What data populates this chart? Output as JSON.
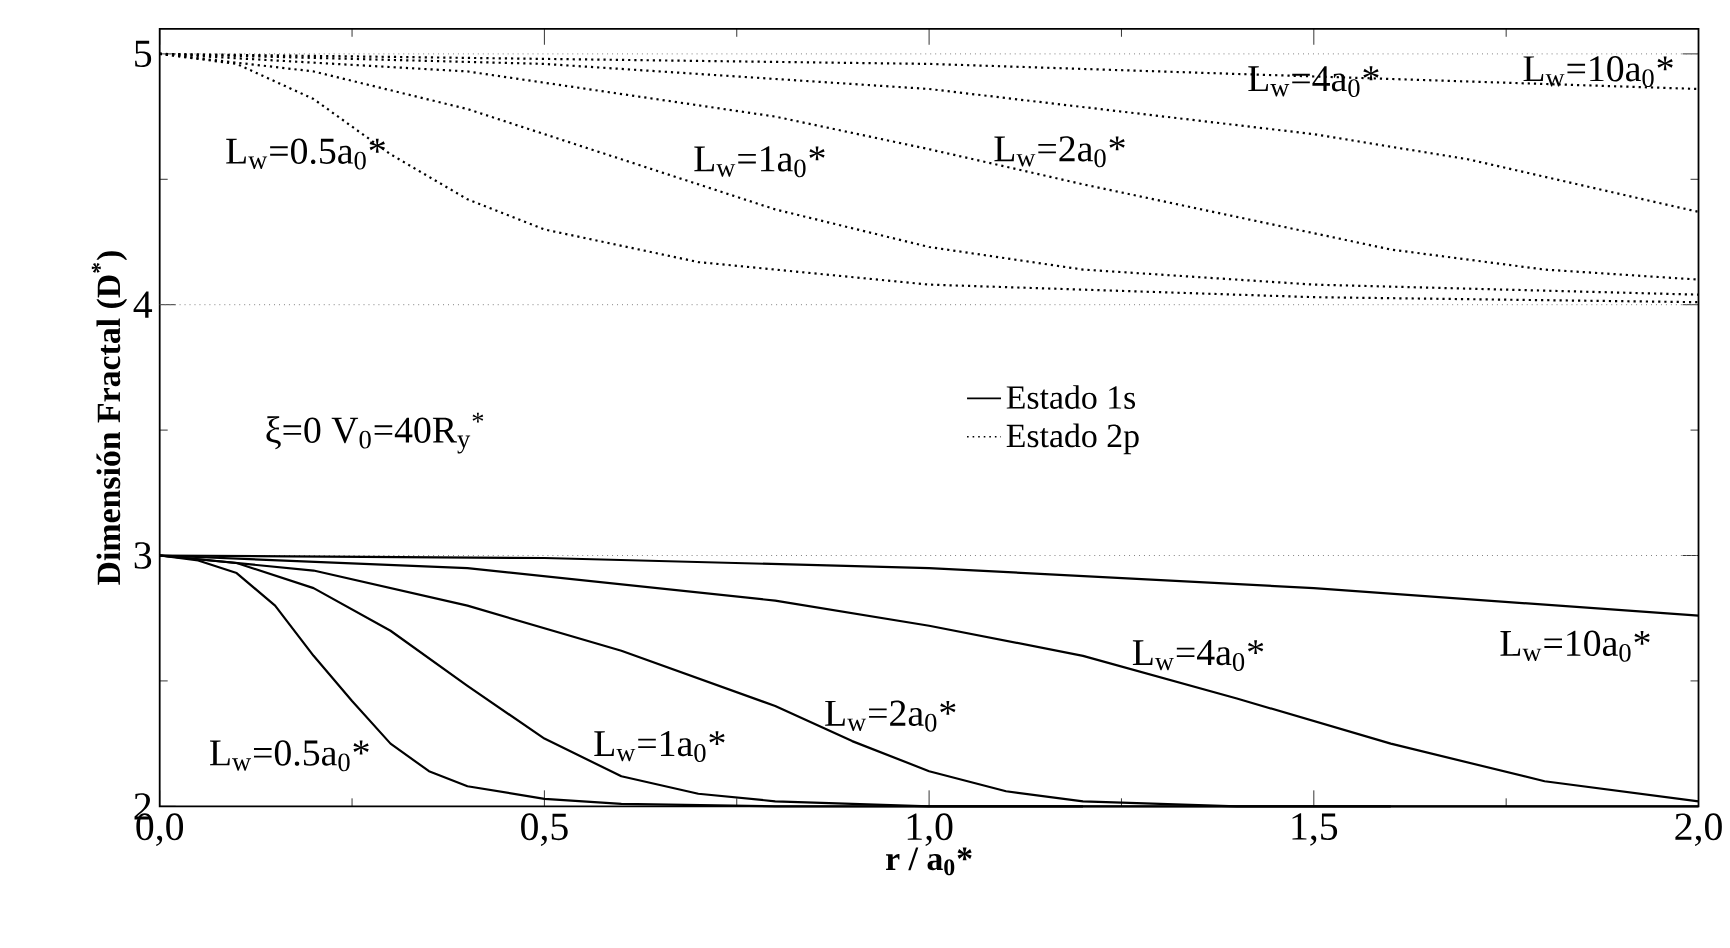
{
  "chart_data": {
    "type": "line",
    "xlabel": "r / a$_{0}$*",
    "ylabel": "Dimensión Fractal (D$^{*}$)",
    "xlim": [
      0,
      2
    ],
    "ylim": [
      2,
      5.1
    ],
    "xticks": [
      {
        "value": 0,
        "label": "0,0"
      },
      {
        "value": 0.5,
        "label": "0,5"
      },
      {
        "value": 1,
        "label": "1,0"
      },
      {
        "value": 1.5,
        "label": "1,5"
      },
      {
        "value": 2,
        "label": "2,0"
      }
    ],
    "yticks": [
      2,
      3,
      4,
      5
    ],
    "grid": false,
    "legend": "center",
    "marker": "none",
    "series": [
      {
        "name": "Estado 1s",
        "color": "#000000",
        "line_style": "solid",
        "x": [
          0,
          0.05,
          0.1,
          0.15,
          0.2,
          0.25,
          0.3,
          0.35,
          0.4,
          0.5,
          0.6,
          0.8,
          1.2
        ],
        "values": [
          3,
          2.98,
          2.93,
          2.8,
          2.6,
          2.42,
          2.25,
          2.14,
          2.08,
          2.03,
          2.01,
          2.0,
          2.0
        ]
      },
      {
        "color": "#000000",
        "line_style": "solid",
        "x": [
          0,
          0.1,
          0.2,
          0.3,
          0.4,
          0.5,
          0.6,
          0.7,
          0.8,
          1.0,
          1.6
        ],
        "values": [
          3,
          2.97,
          2.87,
          2.7,
          2.48,
          2.27,
          2.12,
          2.05,
          2.02,
          2.0,
          2.0
        ]
      },
      {
        "color": "#000000",
        "line_style": "solid",
        "x": [
          0,
          0.2,
          0.4,
          0.6,
          0.8,
          0.9,
          1.0,
          1.1,
          1.2,
          1.4,
          2
        ],
        "values": [
          3,
          2.94,
          2.8,
          2.62,
          2.4,
          2.26,
          2.14,
          2.06,
          2.02,
          2.0,
          2.0
        ]
      },
      {
        "color": "#000000",
        "line_style": "solid",
        "x": [
          0,
          0.4,
          0.8,
          1.0,
          1.2,
          1.4,
          1.6,
          1.8,
          2.0
        ],
        "values": [
          3,
          2.95,
          2.82,
          2.72,
          2.6,
          2.43,
          2.25,
          2.1,
          2.02
        ]
      },
      {
        "color": "#000000",
        "line_style": "solid",
        "x": [
          0,
          0.5,
          1.0,
          1.5,
          2.0
        ],
        "values": [
          3,
          2.99,
          2.95,
          2.87,
          2.76
        ]
      },
      {
        "name": "Estado 2p",
        "color": "#000000",
        "line_style": "dotted",
        "x": [
          0,
          0.1,
          0.2,
          0.3,
          0.4,
          0.5,
          0.7,
          1.0,
          1.5,
          2
        ],
        "values": [
          5,
          4.96,
          4.82,
          4.6,
          4.42,
          4.3,
          4.17,
          4.08,
          4.03,
          4.01
        ]
      },
      {
        "color": "#000000",
        "line_style": "dotted",
        "x": [
          0,
          0.2,
          0.4,
          0.6,
          0.8,
          1.0,
          1.2,
          1.5,
          2
        ],
        "values": [
          5,
          4.93,
          4.78,
          4.58,
          4.38,
          4.23,
          4.14,
          4.08,
          4.04
        ]
      },
      {
        "color": "#000000",
        "line_style": "dotted",
        "x": [
          0,
          0.4,
          0.8,
          1.0,
          1.2,
          1.4,
          1.6,
          1.8,
          2
        ],
        "values": [
          5,
          4.93,
          4.75,
          4.62,
          4.48,
          4.35,
          4.22,
          4.14,
          4.1
        ]
      },
      {
        "color": "#000000",
        "line_style": "dotted",
        "x": [
          0,
          0.5,
          1.0,
          1.5,
          1.7,
          2
        ],
        "values": [
          5,
          4.96,
          4.86,
          4.68,
          4.58,
          4.37
        ]
      },
      {
        "color": "#000000",
        "line_style": "dotted",
        "x": [
          0,
          1,
          2
        ],
        "values": [
          5,
          4.96,
          4.86
        ]
      }
    ],
    "ref_lines": [
      {
        "axis": "y",
        "value": 5,
        "color": "#808080",
        "line_style": "dotted"
      },
      {
        "axis": "y",
        "value": 4,
        "color": "#808080",
        "line_style": "dotted"
      },
      {
        "axis": "y",
        "value": 3,
        "color": "#808080",
        "line_style": "dotted"
      }
    ],
    "annotations": [
      "L$_{w}$=0.5a$_{0}$*",
      "L$_{w}$=1a$_{0}$*",
      "L$_{w}$=2a$_{0}$*",
      "L$_{w}$=4a$_{0}$*",
      "L$_{w}$=10a$_{0}$*",
      "L$_{w}$=0.5a$_{0}$*",
      "L$_{w}$=1a$_{0}$*",
      "L$_{w}$=2a$_{0}$*",
      "L$_{w}$=4a$_{0}$*",
      "L$_{w}$=10a$_{0}$*",
      "ξ=0   V$_{0}$=40R$_{y}$$^{*}$"
    ]
  }
}
